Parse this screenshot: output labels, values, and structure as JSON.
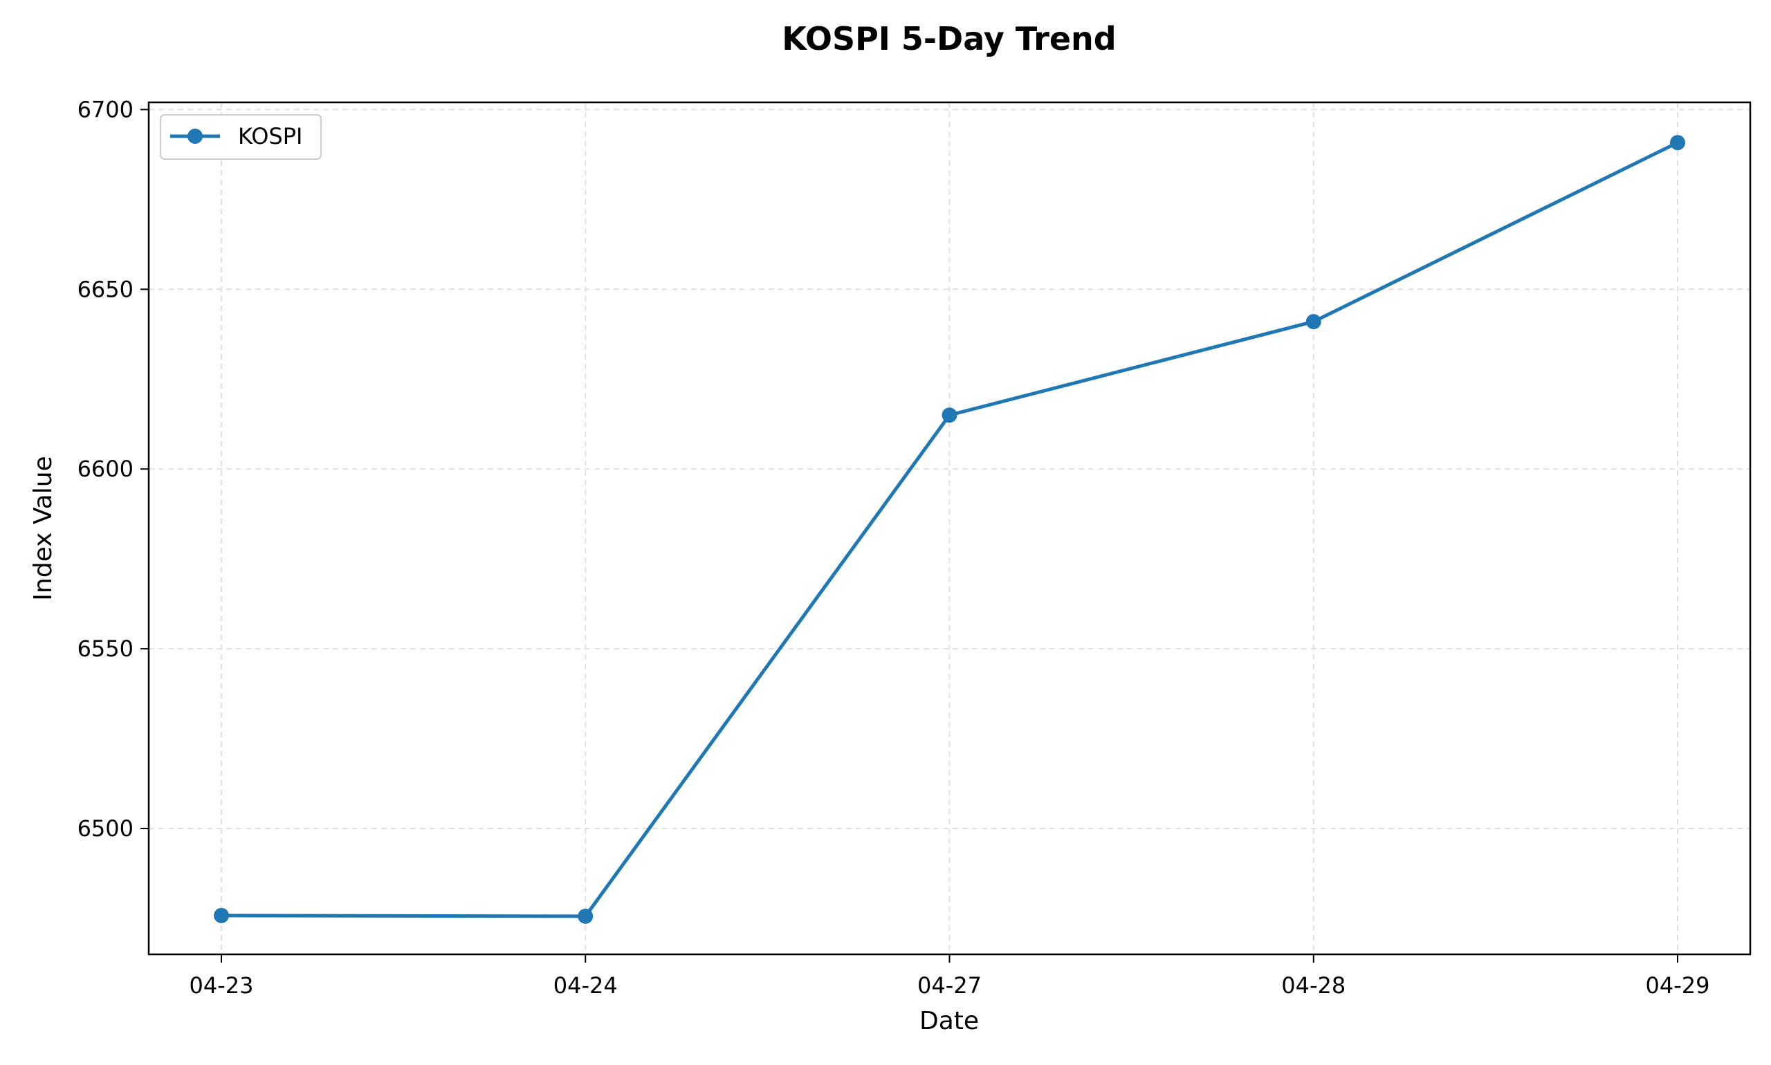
{
  "chart_data": {
    "type": "line",
    "title": "KOSPI 5-Day Trend",
    "xlabel": "Date",
    "ylabel": "Index Value",
    "categories": [
      "04-23",
      "04-24",
      "04-27",
      "04-28",
      "04-29"
    ],
    "series": [
      {
        "name": "KOSPI",
        "values": [
          6475.8,
          6475.6,
          6615.0,
          6641.0,
          6690.8
        ],
        "color": "#1f77b4",
        "marker": "circle"
      }
    ],
    "ylim": [
      6465,
      6702
    ],
    "yticks": [
      6500,
      6550,
      6600,
      6650,
      6700
    ],
    "ytick_labels": [
      "6500",
      "6550",
      "6600",
      "6650",
      "6700"
    ],
    "grid": true,
    "legend_position": "top-left"
  }
}
